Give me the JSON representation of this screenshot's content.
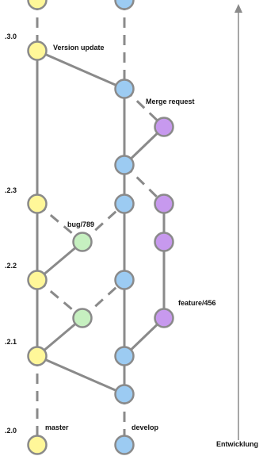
{
  "diagram": {
    "branches": {
      "master": {
        "label": "master",
        "color": "#FFF799"
      },
      "develop": {
        "label": "develop",
        "color": "#9CCBF2"
      },
      "bugfix": {
        "label": "bug/789",
        "color": "#C6F0C0"
      },
      "feature": {
        "label": "feature/456",
        "color": "#C799EE"
      }
    },
    "stroke_color": "#8A8A8A",
    "versions": [
      {
        "id": "v30",
        "label": ".3.0"
      },
      {
        "id": "v23",
        "label": ".2.3"
      },
      {
        "id": "v22",
        "label": ".2.2"
      },
      {
        "id": "v21",
        "label": ".2.1"
      },
      {
        "id": "v20",
        "label": ".2.0"
      }
    ],
    "annotations": {
      "version_update": "Version update",
      "merge_request": "Merge request"
    },
    "axis": {
      "label": "Entwicklung"
    }
  }
}
